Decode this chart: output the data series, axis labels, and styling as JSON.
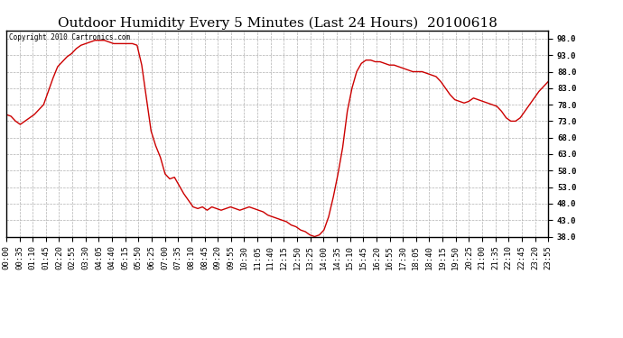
{
  "title": "Outdoor Humidity Every 5 Minutes (Last 24 Hours)  20100618",
  "copyright": "Copyright 2010 Cartronics.com",
  "ylim": [
    38.0,
    100.5
  ],
  "yticks": [
    38.0,
    43.0,
    48.0,
    53.0,
    58.0,
    63.0,
    68.0,
    73.0,
    78.0,
    83.0,
    88.0,
    93.0,
    98.0
  ],
  "line_color": "#cc0000",
  "bg_color": "#ffffff",
  "grid_color": "#b0b0b0",
  "title_fontsize": 11,
  "tick_fontsize": 6.5,
  "x_labels": [
    "00:00",
    "00:35",
    "01:10",
    "01:45",
    "02:20",
    "02:55",
    "03:30",
    "04:05",
    "04:40",
    "05:15",
    "05:50",
    "06:25",
    "07:00",
    "07:35",
    "08:10",
    "08:45",
    "09:20",
    "09:55",
    "10:30",
    "11:05",
    "11:40",
    "12:15",
    "12:50",
    "13:25",
    "14:00",
    "14:35",
    "15:10",
    "15:45",
    "16:20",
    "16:55",
    "17:30",
    "18:05",
    "18:40",
    "19:15",
    "19:50",
    "20:25",
    "21:00",
    "21:35",
    "22:10",
    "22:45",
    "23:20",
    "23:55"
  ],
  "humidity_values": [
    75.0,
    74.5,
    73.0,
    72.0,
    73.0,
    74.0,
    75.0,
    76.5,
    78.0,
    82.0,
    86.0,
    89.5,
    91.0,
    92.5,
    93.5,
    95.0,
    96.0,
    96.5,
    97.0,
    97.5,
    97.5,
    97.5,
    97.0,
    96.5,
    96.5,
    96.5,
    96.5,
    96.5,
    96.0,
    90.0,
    80.0,
    70.0,
    65.5,
    62.0,
    57.0,
    55.5,
    56.0,
    53.5,
    51.0,
    49.0,
    47.0,
    46.5,
    47.0,
    46.0,
    47.0,
    46.5,
    46.0,
    46.5,
    47.0,
    46.5,
    46.0,
    46.5,
    47.0,
    46.5,
    46.0,
    45.5,
    44.5,
    44.0,
    43.5,
    43.0,
    42.5,
    41.5,
    41.0,
    40.0,
    39.5,
    38.5,
    38.0,
    38.5,
    40.0,
    44.0,
    50.0,
    57.0,
    65.0,
    76.0,
    83.0,
    88.0,
    90.5,
    91.5,
    91.5,
    91.0,
    91.0,
    90.5,
    90.0,
    90.0,
    89.5,
    89.0,
    88.5,
    88.0,
    88.0,
    88.0,
    87.5,
    87.0,
    86.5,
    85.0,
    83.0,
    81.0,
    79.5,
    79.0,
    78.5,
    79.0,
    80.0,
    79.5,
    79.0,
    78.5,
    78.0,
    77.5,
    76.0,
    74.0,
    73.0,
    73.0,
    74.0,
    76.0,
    78.0,
    80.0,
    82.0,
    83.5,
    85.0
  ]
}
